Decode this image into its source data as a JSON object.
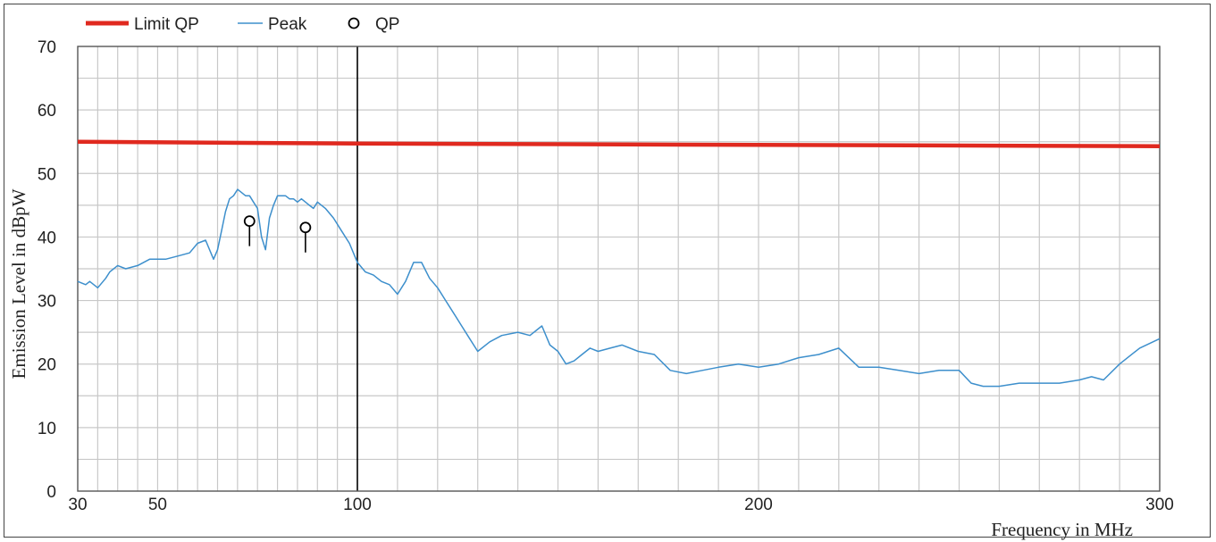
{
  "chart_data": {
    "type": "line",
    "title": "",
    "xlabel": "Frequency in MHz",
    "ylabel": "Emission Level in dBpW",
    "xlim": [
      30,
      300
    ],
    "ylim": [
      0,
      70
    ],
    "x_ticks": [
      30,
      50,
      100,
      200,
      300
    ],
    "y_ticks": [
      0,
      10,
      20,
      30,
      40,
      50,
      60,
      70
    ],
    "grid": true,
    "legend_position": "top-left",
    "colors": {
      "limit": "#e0291f",
      "peak": "#3d8fcc",
      "qp": "#000000"
    },
    "legend": [
      {
        "name": "Limit QP",
        "style": "line",
        "color": "#e0291f"
      },
      {
        "name": "Peak",
        "style": "line",
        "color": "#3d8fcc"
      },
      {
        "name": "QP",
        "style": "circle",
        "color": "#000000"
      }
    ],
    "series": [
      {
        "name": "Limit QP",
        "x": [
          30,
          100,
          300
        ],
        "y": [
          55,
          54.7,
          54.3
        ]
      },
      {
        "name": "Peak",
        "x": [
          30,
          32,
          33,
          35,
          37,
          38,
          40,
          42,
          45,
          48,
          50,
          52,
          55,
          58,
          60,
          62,
          64,
          65,
          66,
          67,
          68,
          69,
          70,
          71,
          72,
          73,
          74,
          75,
          76,
          77,
          78,
          79,
          80,
          81,
          82,
          83,
          84,
          85,
          86,
          87,
          88,
          89,
          90,
          92,
          94,
          96,
          98,
          100,
          102,
          104,
          106,
          108,
          110,
          112,
          114,
          116,
          118,
          120,
          122,
          124,
          126,
          128,
          130,
          133,
          136,
          140,
          143,
          146,
          148,
          150,
          152,
          154,
          156,
          158,
          160,
          163,
          166,
          170,
          174,
          178,
          182,
          186,
          190,
          195,
          200,
          205,
          210,
          215,
          220,
          225,
          230,
          235,
          240,
          245,
          250,
          253,
          256,
          260,
          265,
          270,
          275,
          280,
          283,
          286,
          290,
          295,
          300
        ],
        "y": [
          33,
          32.5,
          33,
          32,
          33.5,
          34.5,
          35.5,
          35,
          35.5,
          36.5,
          36.5,
          36.5,
          37,
          37.5,
          39,
          39.5,
          36.5,
          38,
          41,
          44,
          46,
          46.5,
          47.5,
          47,
          46.5,
          46.5,
          45.5,
          44.5,
          40,
          38,
          43,
          45,
          46.5,
          46.5,
          46.5,
          46,
          46,
          45.5,
          46,
          45.5,
          45,
          44.5,
          45.5,
          44.5,
          43,
          41,
          39,
          36,
          34.5,
          34,
          33,
          32.5,
          31,
          33,
          36,
          36,
          33.5,
          32,
          30,
          28,
          26,
          24,
          22,
          23.5,
          24.5,
          25,
          24.5,
          26,
          23,
          22,
          20,
          20.5,
          21.5,
          22.5,
          22,
          22.5,
          23,
          22,
          21.5,
          19,
          18.5,
          19,
          19.5,
          20,
          19.5,
          20,
          21,
          21.5,
          22.5,
          19.5,
          19.5,
          19,
          18.5,
          19,
          19,
          17,
          16.5,
          16.5,
          17,
          17,
          17,
          17.5,
          18,
          17.5,
          20,
          22.5,
          24
        ]
      },
      {
        "name": "QP",
        "x": [
          73,
          87
        ],
        "y": [
          42.5,
          41.5
        ]
      }
    ]
  }
}
